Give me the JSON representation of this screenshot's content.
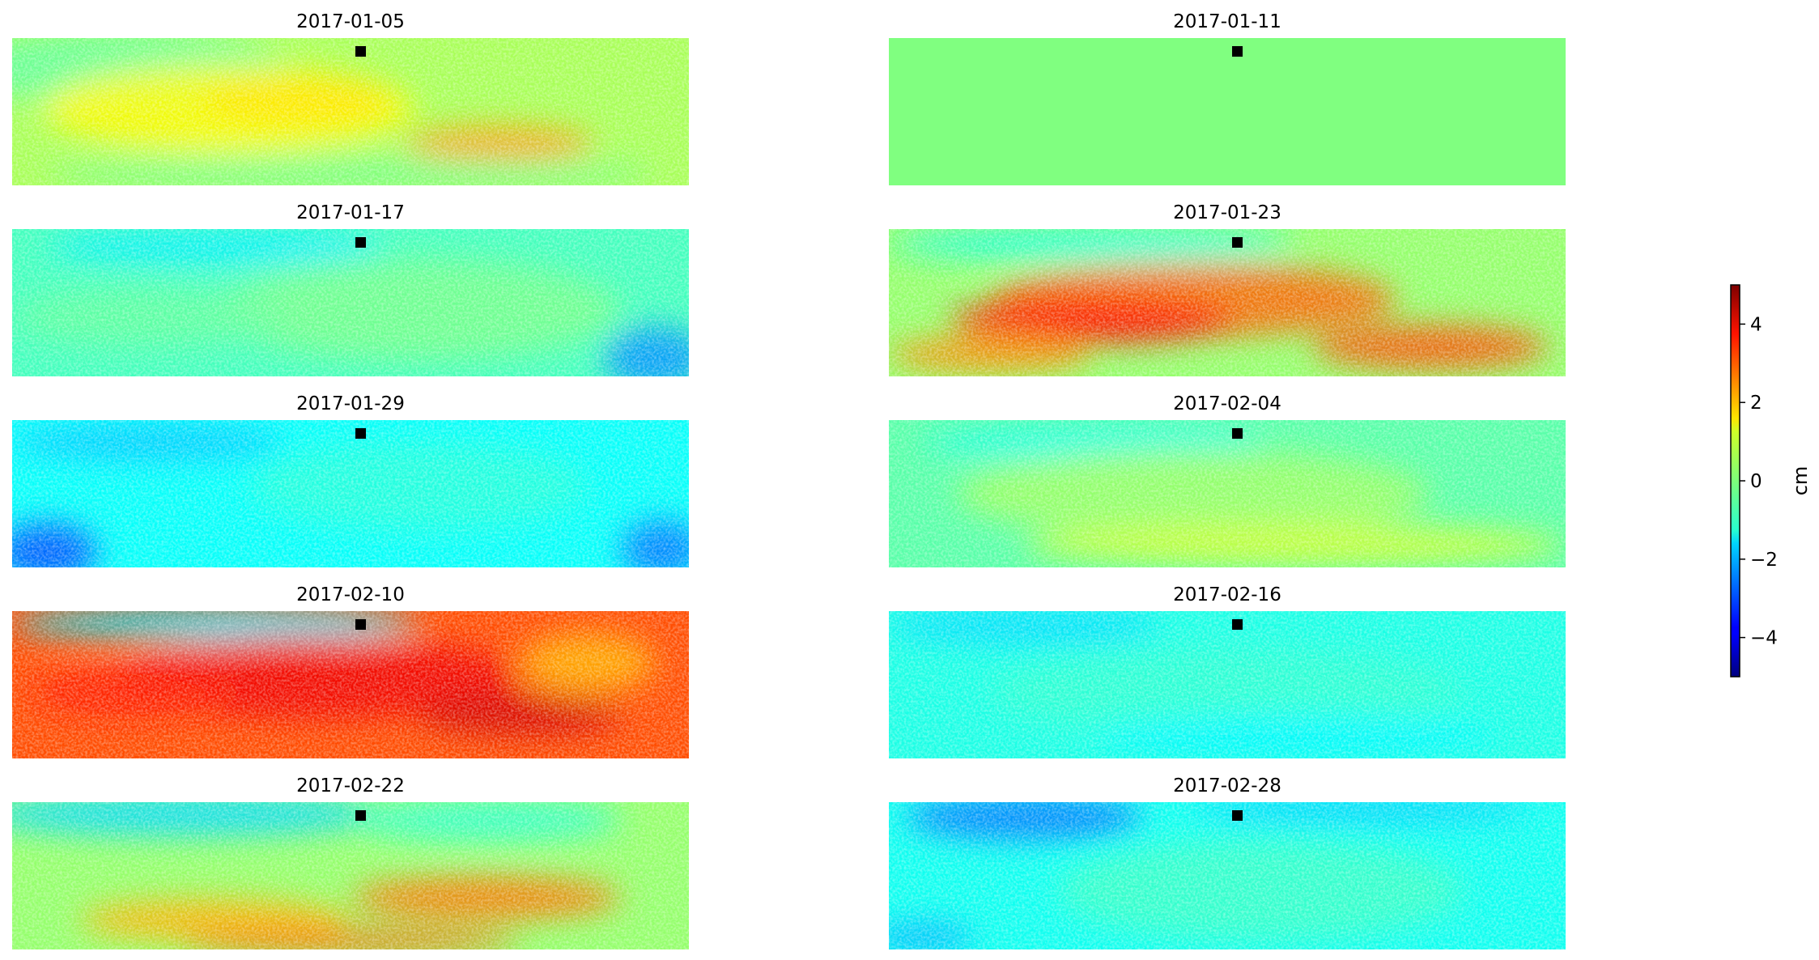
{
  "chart_data": {
    "type": "heatmap",
    "layout": "5x2 small multiples of displacement maps",
    "panels": [
      {
        "title": "2017-01-05",
        "pattern": "broad warm band (1 to 3 cm) across middle, cooler edges"
      },
      {
        "title": "2017-01-11",
        "pattern": "uniform 0 cm (reference date)"
      },
      {
        "title": "2017-01-17",
        "pattern": "mostly -1 to 0 cm, -2 cm at bottom-right"
      },
      {
        "title": "2017-01-23",
        "pattern": "strong warm band (2 to 4 cm) through center-left"
      },
      {
        "title": "2017-01-29",
        "pattern": "mostly -1 cm, -3 cm at lower corners"
      },
      {
        "title": "2017-02-04",
        "pattern": "mostly -0.5 to 1 cm, slight warm band"
      },
      {
        "title": "2017-02-10",
        "pattern": "widespread 3 to 4 cm across most of scene"
      },
      {
        "title": "2017-02-16",
        "pattern": "mostly -1 cm, fairly uniform"
      },
      {
        "title": "2017-02-22",
        "pattern": "warm 1 to 3 cm in lower half, cooler top"
      },
      {
        "title": "2017-02-28",
        "pattern": "-1 cm overall, -2.5 cm band at top-left"
      }
    ],
    "reference_marker": "black square",
    "colorbar": {
      "colormap": "jet",
      "vmin": -5,
      "vmax": 5,
      "ticks": [
        "4",
        "2",
        "0",
        "−2",
        "−4"
      ],
      "tick_values": [
        4,
        2,
        0,
        -2,
        -4
      ],
      "label": "cm"
    }
  }
}
